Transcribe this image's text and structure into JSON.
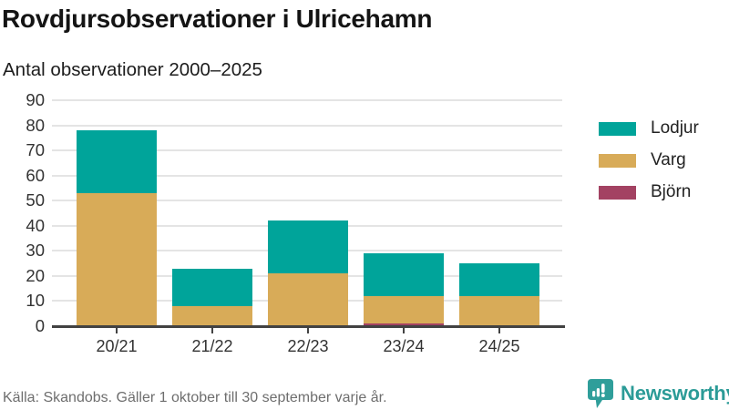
{
  "header": {
    "title": "Rovdjursobservationer i Ulricehamn",
    "subtitle": "Antal observationer 2000–2025"
  },
  "chart_data": {
    "type": "bar",
    "stacked": true,
    "title": "Rovdjursobservationer i Ulricehamn",
    "subtitle": "Antal observationer 2000–2025",
    "categories": [
      "20/21",
      "21/22",
      "22/23",
      "23/24",
      "24/25"
    ],
    "series": [
      {
        "name": "Björn",
        "color": "#a34262",
        "values": [
          0,
          0,
          0,
          1,
          0
        ]
      },
      {
        "name": "Varg",
        "color": "#d8ab58",
        "values": [
          53,
          8,
          21,
          11,
          12
        ]
      },
      {
        "name": "Lodjur",
        "color": "#00a49a",
        "values": [
          25,
          15,
          21,
          17,
          13
        ]
      }
    ],
    "totals": [
      78,
      23,
      42,
      29,
      25
    ],
    "legend": [
      {
        "label": "Lodjur",
        "color": "#00a49a"
      },
      {
        "label": "Varg",
        "color": "#d8ab58"
      },
      {
        "label": "Björn",
        "color": "#a34262"
      }
    ],
    "legend_position": "right",
    "xlabel": "",
    "ylabel": "",
    "ylim": [
      0,
      90
    ],
    "yticks": [
      0,
      10,
      20,
      30,
      40,
      50,
      60,
      70,
      80,
      90
    ],
    "grid": true
  },
  "footer": {
    "source": "Källa: Skandobs. Gäller 1 oktober till 30 september varje år.",
    "brand": "Newsworthy"
  },
  "colors": {
    "accent_teal": "#00a49a",
    "accent_gold": "#d8ab58",
    "accent_maroon": "#a34262",
    "brand_teal": "#2b9b97",
    "axis": "#424242",
    "gridline": "#e4e4e4"
  }
}
